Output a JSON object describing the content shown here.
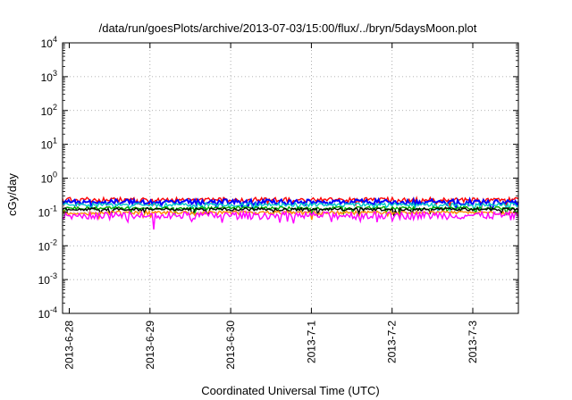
{
  "chart_data": {
    "type": "line",
    "title": "/data/run/goesPlots/archive/2013-07-03/15:00/flux/../bryn/5daysMoon.plot",
    "xlabel": "Coordinated Universal Time (UTC)",
    "ylabel": "cGy/day",
    "yscale": "log",
    "ylim": [
      0.0001,
      10000
    ],
    "xlim": [
      "2013-06-28",
      "2013-07-03T15:00"
    ],
    "grid": true,
    "x_ticks": [
      "2013-6-28",
      "2013-6-29",
      "2013-6-30",
      "2013-7-1",
      "2013-7-2",
      "2013-7-3"
    ],
    "y_ticks": [
      {
        "value": 0.0001,
        "base": "10",
        "exp": "-4"
      },
      {
        "value": 0.001,
        "base": "10",
        "exp": "-3"
      },
      {
        "value": 0.01,
        "base": "10",
        "exp": "-2"
      },
      {
        "value": 0.1,
        "base": "10",
        "exp": "-1"
      },
      {
        "value": 1,
        "base": "10",
        "exp": "0"
      },
      {
        "value": 10,
        "base": "10",
        "exp": "1"
      },
      {
        "value": 100,
        "base": "10",
        "exp": "2"
      },
      {
        "value": 1000,
        "base": "10",
        "exp": "3"
      },
      {
        "value": 10000,
        "base": "10",
        "exp": "4"
      }
    ],
    "series": [
      {
        "color": "#ff0000",
        "level": 0.23,
        "spread": 0.16
      },
      {
        "color": "#0000ff",
        "level": 0.2,
        "spread": 0.18
      },
      {
        "color": "#00c8c8",
        "level": 0.165,
        "spread": 0.12
      },
      {
        "color": "#00b000",
        "level": 0.13,
        "spread": 0.1
      },
      {
        "color": "#000000",
        "level": 0.12,
        "spread": 0.1
      },
      {
        "color": "#ff8c00",
        "level": 0.095,
        "spread": 0.12
      },
      {
        "color": "#ff00ff",
        "level": 0.08,
        "spread": 0.25
      }
    ]
  }
}
